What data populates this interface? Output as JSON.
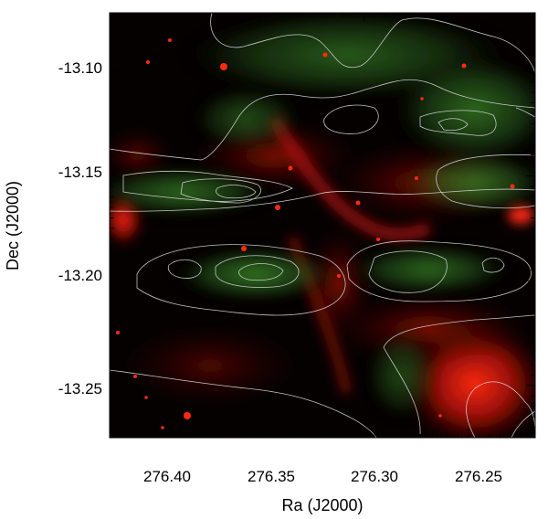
{
  "image": {
    "description_type": "astronomical composite",
    "channels": {
      "red": "#ff1a0a",
      "green": "#2f7a1f"
    },
    "contour_color": "#d8d8d8"
  },
  "axes": {
    "xlabel": "Ra (J2000)",
    "ylabel": "Dec (J2000)",
    "x_ticks": [
      "276.40",
      "276.35",
      "276.30",
      "276.25"
    ],
    "y_ticks": [
      "-13.10",
      "-13.15",
      "-13.20",
      "-13.25"
    ],
    "x_tick_values": [
      276.4,
      276.35,
      276.3,
      276.25
    ],
    "y_tick_values": [
      -13.1,
      -13.15,
      -13.2,
      -13.25
    ],
    "xlim": [
      276.422,
      276.218
    ],
    "ylim": [
      -13.275,
      -13.072
    ]
  }
}
